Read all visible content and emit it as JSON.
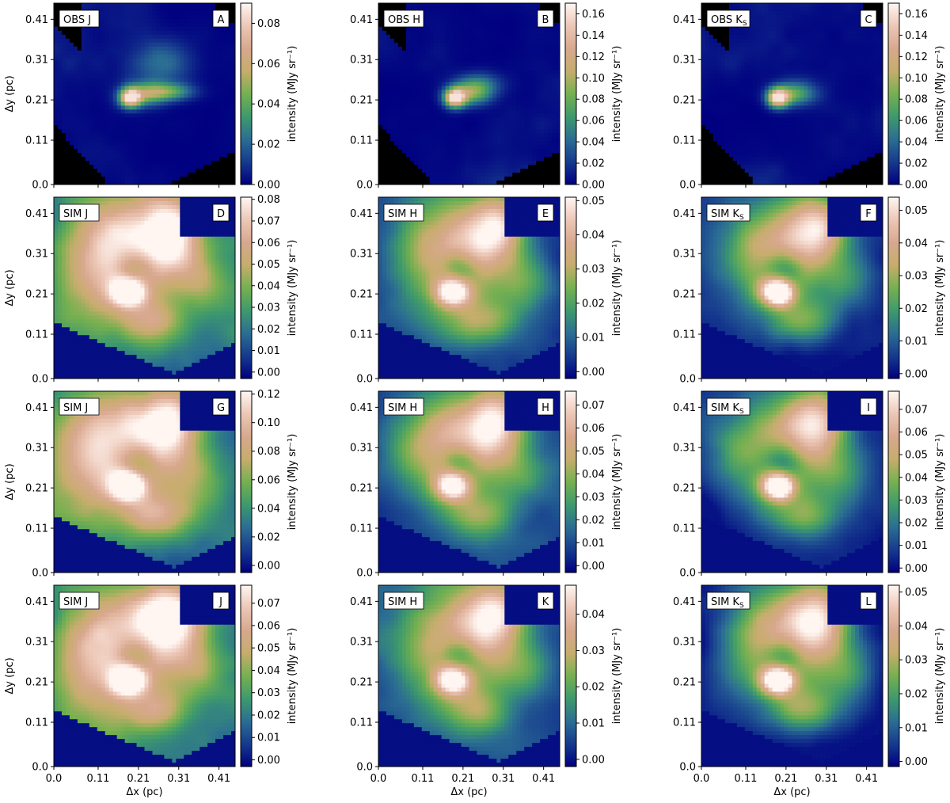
{
  "figure": {
    "xlabel": "Δx (pc)",
    "ylabel": "Δy (pc)",
    "cbar_label": "intensity (MJy sr⁻¹)",
    "x_ticks": [
      "0.0",
      "0.11",
      "0.21",
      "0.31",
      "0.41"
    ],
    "y_ticks": [
      "0.0",
      "0.11",
      "0.21",
      "0.31",
      "0.41"
    ],
    "colormap": [
      "#000080",
      "#163a8e",
      "#2b6e93",
      "#3e9a6c",
      "#76b050",
      "#c6ad6c",
      "#d8a88e",
      "#ecc7b7",
      "#fff6f2"
    ]
  },
  "chart_data": [
    {
      "type": "heatmap",
      "id": "A",
      "label": "OBS J",
      "kind": "obs",
      "band": "J",
      "xlim": [
        0.0,
        0.45
      ],
      "ylim": [
        0.0,
        0.45
      ],
      "cbar_range": [
        0.0,
        0.09
      ],
      "cbar_ticks": [
        "0.00",
        "0.02",
        "0.04",
        "0.06",
        "0.08"
      ]
    },
    {
      "type": "heatmap",
      "id": "B",
      "label": "OBS H",
      "kind": "obs",
      "band": "H",
      "xlim": [
        0.0,
        0.45
      ],
      "ylim": [
        0.0,
        0.45
      ],
      "cbar_range": [
        0.0,
        0.17
      ],
      "cbar_ticks": [
        "0.00",
        "0.02",
        "0.04",
        "0.06",
        "0.08",
        "0.10",
        "0.12",
        "0.14",
        "0.16"
      ]
    },
    {
      "type": "heatmap",
      "id": "C",
      "label": "OBS Ks",
      "label_main": "OBS K",
      "label_sub": "S",
      "kind": "obs",
      "band": "K",
      "xlim": [
        0.0,
        0.45
      ],
      "ylim": [
        0.0,
        0.45
      ],
      "cbar_range": [
        0.0,
        0.17
      ],
      "cbar_ticks": [
        "0.00",
        "0.02",
        "0.04",
        "0.06",
        "0.08",
        "0.10",
        "0.12",
        "0.14",
        "0.16"
      ]
    },
    {
      "type": "heatmap",
      "id": "D",
      "label": "SIM J",
      "kind": "sim",
      "band": "J",
      "xlim": [
        0.0,
        0.45
      ],
      "ylim": [
        0.0,
        0.45
      ],
      "cbar_range": [
        -0.003,
        0.081
      ],
      "cbar_ticks": [
        "0.00",
        "0.01",
        "0.02",
        "0.03",
        "0.04",
        "0.05",
        "0.06",
        "0.07",
        "0.08"
      ]
    },
    {
      "type": "heatmap",
      "id": "E",
      "label": "SIM H",
      "kind": "sim",
      "band": "H",
      "xlim": [
        0.0,
        0.45
      ],
      "ylim": [
        0.0,
        0.45
      ],
      "cbar_range": [
        -0.002,
        0.051
      ],
      "cbar_ticks": [
        "0.00",
        "0.01",
        "0.02",
        "0.03",
        "0.04",
        "0.05"
      ]
    },
    {
      "type": "heatmap",
      "id": "F",
      "label": "SIM Ks",
      "label_main": "SIM K",
      "label_sub": "S",
      "kind": "sim",
      "band": "K",
      "xlim": [
        0.0,
        0.45
      ],
      "ylim": [
        0.0,
        0.45
      ],
      "cbar_range": [
        -0.0015,
        0.054
      ],
      "cbar_ticks": [
        "0.00",
        "0.01",
        "0.02",
        "0.03",
        "0.04",
        "0.05"
      ]
    },
    {
      "type": "heatmap",
      "id": "G",
      "label": "SIM J",
      "kind": "sim",
      "band": "J",
      "xlim": [
        0.0,
        0.45
      ],
      "ylim": [
        0.0,
        0.45
      ],
      "cbar_range": [
        -0.005,
        0.122
      ],
      "cbar_ticks": [
        "0.00",
        "0.02",
        "0.04",
        "0.06",
        "0.08",
        "0.10",
        "0.12"
      ]
    },
    {
      "type": "heatmap",
      "id": "H",
      "label": "SIM H",
      "kind": "sim",
      "band": "H",
      "xlim": [
        0.0,
        0.45
      ],
      "ylim": [
        0.0,
        0.45
      ],
      "cbar_range": [
        -0.003,
        0.076
      ],
      "cbar_ticks": [
        "0.00",
        "0.01",
        "0.02",
        "0.03",
        "0.04",
        "0.05",
        "0.06",
        "0.07"
      ]
    },
    {
      "type": "heatmap",
      "id": "I",
      "label": "SIM Ks",
      "label_main": "SIM K",
      "label_sub": "S",
      "kind": "sim",
      "band": "K",
      "xlim": [
        0.0,
        0.45
      ],
      "ylim": [
        0.0,
        0.45
      ],
      "cbar_range": [
        -0.002,
        0.078
      ],
      "cbar_ticks": [
        "0.00",
        "0.01",
        "0.02",
        "0.03",
        "0.04",
        "0.05",
        "0.06",
        "0.07"
      ]
    },
    {
      "type": "heatmap",
      "id": "J",
      "label": "SIM J",
      "kind": "sim",
      "band": "J",
      "xlim": [
        0.0,
        0.45
      ],
      "ylim": [
        0.0,
        0.45
      ],
      "cbar_range": [
        -0.003,
        0.078
      ],
      "cbar_ticks": [
        "0.00",
        "0.01",
        "0.02",
        "0.03",
        "0.04",
        "0.05",
        "0.06",
        "0.07"
      ]
    },
    {
      "type": "heatmap",
      "id": "K",
      "label": "SIM H",
      "kind": "sim",
      "band": "H",
      "xlim": [
        0.0,
        0.45
      ],
      "ylim": [
        0.0,
        0.45
      ],
      "cbar_range": [
        -0.002,
        0.048
      ],
      "cbar_ticks": [
        "0.00",
        "0.01",
        "0.02",
        "0.03",
        "0.04"
      ]
    },
    {
      "type": "heatmap",
      "id": "L",
      "label": "SIM Ks",
      "label_main": "SIM K",
      "label_sub": "S",
      "kind": "sim",
      "band": "K",
      "xlim": [
        0.0,
        0.45
      ],
      "ylim": [
        0.0,
        0.45
      ],
      "cbar_range": [
        -0.0015,
        0.052
      ],
      "cbar_ticks": [
        "0.00",
        "0.01",
        "0.02",
        "0.03",
        "0.04",
        "0.05"
      ]
    }
  ]
}
